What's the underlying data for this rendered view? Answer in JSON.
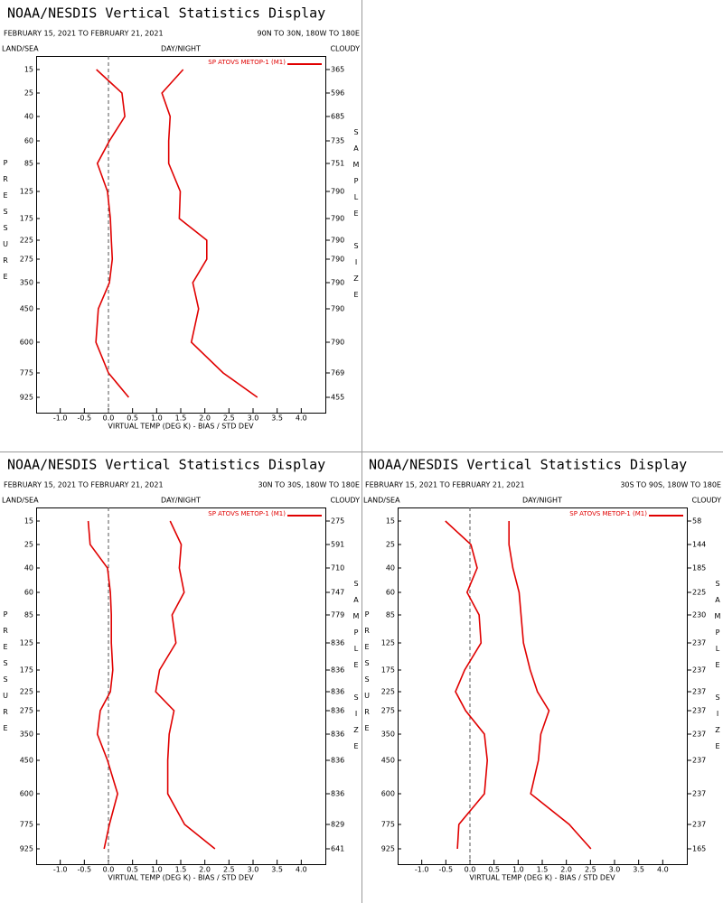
{
  "chart_data": [
    {
      "type": "line",
      "title": "NOAA/NESDIS Vertical Statistics Display",
      "subtitle": "FEBRUARY 15, 2021 TO FEBRUARY 21, 2021",
      "region": "90N TO 30N, 180W TO 180E",
      "land_sea": "LAND/SEA",
      "day_night": "DAY/NIGHT",
      "cloudy": "CLOUDY",
      "legend": "SP ATOVS METOP-1 (M1)",
      "x_label": "VIRTUAL TEMP (DEG K) - BIAS / STD DEV",
      "y_label": "PRESSURE",
      "y2_label": "SAMPLE SIZE",
      "categories": [
        15,
        25,
        40,
        60,
        85,
        125,
        175,
        225,
        275,
        350,
        450,
        600,
        775,
        925
      ],
      "sample_size": [
        365,
        596,
        685,
        735,
        751,
        790,
        790,
        790,
        790,
        790,
        790,
        790,
        769,
        455
      ],
      "series": [
        {
          "color": "#e00000",
          "values": [
            -0.25,
            0.28,
            0.34,
            0.02,
            -0.23,
            -0.02,
            0.04,
            0.06,
            0.08,
            0.02,
            -0.21,
            -0.26,
            0,
            0.42
          ]
        },
        {
          "color": "#e00000",
          "values": [
            1.55,
            1.11,
            1.28,
            1.25,
            1.25,
            1.49,
            1.47,
            2.04,
            2.04,
            1.75,
            1.87,
            1.72,
            2.38,
            3.09
          ]
        }
      ],
      "xlim": [
        -1.5,
        4.5
      ],
      "xticks": [
        {
          "value": -1,
          "label": "-1.0"
        },
        {
          "value": -0.5,
          "label": "-0.5"
        },
        {
          "value": 0,
          "label": "0.0"
        },
        0.5,
        {
          "value": 1,
          "label": "1.0"
        },
        1.5,
        {
          "value": 2,
          "label": "2.0"
        },
        2.5,
        {
          "value": 3,
          "label": "3.0"
        },
        3.5,
        {
          "value": 4,
          "label": "4.0"
        }
      ],
      "reference_x": 0
    },
    {
      "type": "line",
      "title": "NOAA/NESDIS Vertical Statistics Display",
      "subtitle": "FEBRUARY 15, 2021 TO FEBRUARY 21, 2021",
      "region": "30N TO 30S, 180W TO 180E",
      "land_sea": "LAND/SEA",
      "day_night": "DAY/NIGHT",
      "cloudy": "CLOUDY",
      "legend": "SP ATOVS METOP-1 (M1)",
      "x_label": "VIRTUAL TEMP (DEG K) - BIAS / STD DEV",
      "y_label": "PRESSURE",
      "y2_label": "SAMPLE SIZE",
      "categories": [
        15,
        25,
        40,
        60,
        85,
        125,
        175,
        225,
        275,
        350,
        450,
        600,
        775,
        925
      ],
      "sample_size": [
        275,
        591,
        710,
        747,
        779,
        836,
        836,
        836,
        836,
        836,
        836,
        836,
        829,
        641
      ],
      "series": [
        {
          "color": "#e00000",
          "values": [
            -0.42,
            -0.38,
            -0.02,
            0.04,
            0.06,
            0.06,
            0.09,
            0.04,
            -0.17,
            -0.23,
            -0.02,
            0.19,
            0.02,
            -0.09
          ]
        },
        {
          "color": "#e00000",
          "values": [
            1.28,
            1.51,
            1.47,
            1.57,
            1.32,
            1.4,
            1.06,
            0.98,
            1.36,
            1.26,
            1.23,
            1.23,
            1.58,
            2.21
          ]
        }
      ],
      "xlim": [
        -1.5,
        4.5
      ],
      "xticks": [
        {
          "value": -1,
          "label": "-1.0"
        },
        {
          "value": -0.5,
          "label": "-0.5"
        },
        {
          "value": 0,
          "label": "0.0"
        },
        0.5,
        {
          "value": 1,
          "label": "1.0"
        },
        1.5,
        {
          "value": 2,
          "label": "2.0"
        },
        2.5,
        {
          "value": 3,
          "label": "3.0"
        },
        3.5,
        {
          "value": 4,
          "label": "4.0"
        }
      ],
      "reference_x": 0
    },
    {
      "type": "line",
      "title": "NOAA/NESDIS Vertical Statistics Display",
      "subtitle": "FEBRUARY 15, 2021 TO FEBRUARY 21, 2021",
      "region": "30S TO 90S, 180W TO 180E",
      "land_sea": "LAND/SEA",
      "day_night": "DAY/NIGHT",
      "cloudy": "CLOUDY",
      "legend": "SP ATOVS METOP-1 (M1)",
      "x_label": "VIRTUAL TEMP (DEG K) - BIAS / STD DEV",
      "y_label": "PRESSURE",
      "y2_label": "SAMPLE SIZE",
      "categories": [
        15,
        25,
        40,
        60,
        85,
        125,
        175,
        225,
        275,
        350,
        450,
        600,
        775,
        925
      ],
      "sample_size": [
        58,
        144,
        185,
        225,
        230,
        237,
        237,
        237,
        237,
        237,
        237,
        237,
        237,
        165
      ],
      "series": [
        {
          "color": "#e00000",
          "values": [
            -0.51,
            0.02,
            0.15,
            -0.06,
            0.19,
            0.23,
            -0.11,
            -0.3,
            -0.09,
            0.3,
            0.36,
            0.3,
            -0.23,
            -0.26
          ]
        },
        {
          "color": "#e00000",
          "values": [
            0.81,
            0.81,
            0.89,
            1.02,
            1.06,
            1.11,
            1.25,
            1.4,
            1.64,
            1.47,
            1.42,
            1.26,
            2.06,
            2.51
          ]
        }
      ],
      "xlim": [
        -1.5,
        4.5
      ],
      "xticks": [
        {
          "value": -1,
          "label": "-1.0"
        },
        {
          "value": -0.5,
          "label": "-0.5"
        },
        {
          "value": 0,
          "label": "0.0"
        },
        0.5,
        {
          "value": 1,
          "label": "1.0"
        },
        1.5,
        {
          "value": 2,
          "label": "2.0"
        },
        2.5,
        {
          "value": 3,
          "label": "3.0"
        },
        3.5,
        {
          "value": 4,
          "label": "4.0"
        }
      ],
      "reference_x": 0
    }
  ]
}
